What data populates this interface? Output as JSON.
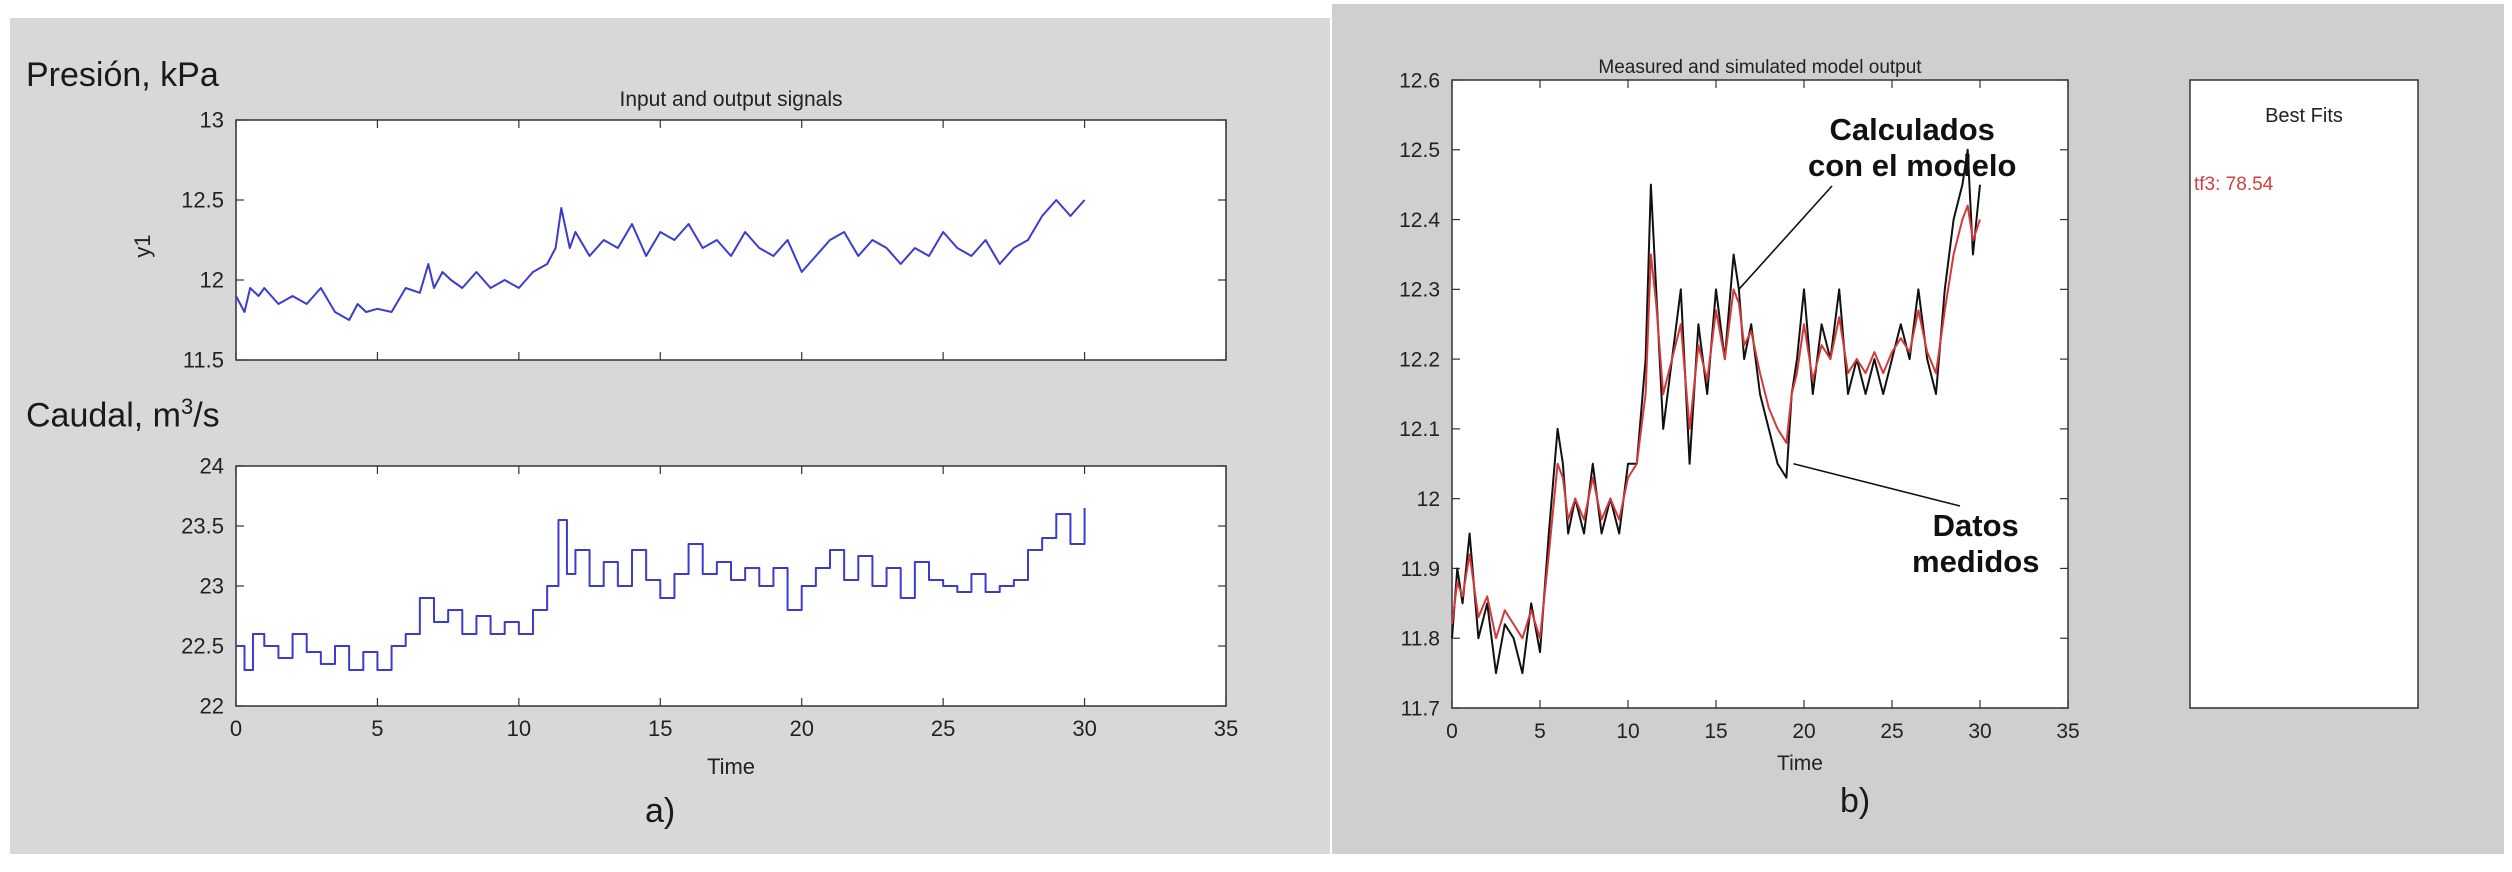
{
  "panel_a": {
    "title": "Input and output signals",
    "ylabel_top": "Presión, kPa",
    "ylabel_bottom_prefix": "Caudal, m",
    "ylabel_bottom_sup": "3",
    "ylabel_bottom_suffix": "/s",
    "caption": "a)",
    "xlabel": "Time"
  },
  "panel_b": {
    "title": "Measured and simulated model output",
    "xlabel": "Time",
    "caption": "b)",
    "annotation_model_1": "Calculados",
    "annotation_model_2": "con el modelo",
    "annotation_data_1": "Datos",
    "annotation_data_2": "medidos",
    "best_fits_title": "Best Fits",
    "best_fits_entry": "tf3: 78.54"
  },
  "colors": {
    "signal": "#3c3ccc",
    "measured": "#111111",
    "model": "#d23a3a",
    "fit_entry": "#d04040"
  },
  "chart_data": [
    {
      "type": "line",
      "title": "Input and output signals",
      "ylabel": "y1",
      "xlabel": "",
      "xlim": [
        0,
        35
      ],
      "ylim": [
        11.5,
        13
      ],
      "xticks": [
        0,
        5,
        10,
        15,
        20,
        25,
        30,
        35
      ],
      "yticks": [
        11.5,
        12,
        12.5,
        13
      ],
      "series": [
        {
          "x": [
            0,
            0.3,
            0.5,
            0.8,
            1,
            1.5,
            2,
            2.5,
            3,
            3.5,
            4,
            4.3,
            4.6,
            5,
            5.5,
            6,
            6.5,
            6.8,
            7,
            7.3,
            7.6,
            8,
            8.5,
            9,
            9.5,
            10,
            10.5,
            11,
            11.3,
            11.5,
            11.8,
            12,
            12.5,
            13,
            13.5,
            14,
            14.5,
            15,
            15.5,
            16,
            16.5,
            17,
            17.5,
            18,
            18.5,
            19,
            19.5,
            20,
            20.5,
            21,
            21.5,
            22,
            22.5,
            23,
            23.5,
            24,
            24.5,
            25,
            25.5,
            26,
            26.5,
            27,
            27.5,
            28,
            28.5,
            29,
            29.5,
            30
          ],
          "y": [
            11.9,
            11.8,
            11.95,
            11.9,
            11.95,
            11.85,
            11.9,
            11.85,
            11.95,
            11.8,
            11.75,
            11.85,
            11.8,
            11.82,
            11.8,
            11.95,
            11.92,
            12.1,
            11.95,
            12.05,
            12.0,
            11.95,
            12.05,
            11.95,
            12.0,
            11.95,
            12.05,
            12.1,
            12.2,
            12.45,
            12.2,
            12.3,
            12.15,
            12.25,
            12.2,
            12.35,
            12.15,
            12.3,
            12.25,
            12.35,
            12.2,
            12.25,
            12.15,
            12.3,
            12.2,
            12.15,
            12.25,
            12.05,
            12.15,
            12.25,
            12.3,
            12.15,
            12.25,
            12.2,
            12.1,
            12.2,
            12.15,
            12.3,
            12.2,
            12.15,
            12.25,
            12.1,
            12.2,
            12.25,
            12.4,
            12.5,
            12.4,
            12.5
          ]
        }
      ]
    },
    {
      "type": "line",
      "title": "",
      "xlabel": "Time",
      "xlim": [
        0,
        35
      ],
      "ylim": [
        22,
        24
      ],
      "xticks": [
        0,
        5,
        10,
        15,
        20,
        25,
        30,
        35
      ],
      "yticks": [
        22,
        22.5,
        23,
        23.5,
        24
      ],
      "step": true,
      "series": [
        {
          "x": [
            0,
            0.3,
            0.6,
            1,
            1.5,
            2,
            2.5,
            3,
            3.5,
            4,
            4.5,
            5,
            5.5,
            6,
            6.5,
            7,
            7.5,
            8,
            8.5,
            9,
            9.5,
            10,
            10.5,
            11,
            11.4,
            11.7,
            12,
            12.5,
            13,
            13.5,
            14,
            14.5,
            15,
            15.5,
            16,
            16.5,
            17,
            17.5,
            18,
            18.5,
            19,
            19.5,
            20,
            20.5,
            21,
            21.5,
            22,
            22.5,
            23,
            23.5,
            24,
            24.5,
            25,
            25.5,
            26,
            26.5,
            27,
            27.5,
            28,
            28.5,
            29,
            29.5,
            30
          ],
          "y": [
            22.5,
            22.3,
            22.6,
            22.5,
            22.4,
            22.6,
            22.45,
            22.35,
            22.5,
            22.3,
            22.45,
            22.3,
            22.5,
            22.6,
            22.9,
            22.7,
            22.8,
            22.6,
            22.75,
            22.6,
            22.7,
            22.6,
            22.8,
            23.0,
            23.55,
            23.1,
            23.3,
            23.0,
            23.2,
            23.0,
            23.3,
            23.05,
            22.9,
            23.1,
            23.35,
            23.1,
            23.2,
            23.05,
            23.15,
            23.0,
            23.15,
            22.8,
            23.0,
            23.15,
            23.3,
            23.05,
            23.25,
            23.0,
            23.15,
            22.9,
            23.2,
            23.05,
            23.0,
            22.95,
            23.1,
            22.95,
            23.0,
            23.05,
            23.3,
            23.4,
            23.6,
            23.35,
            23.65
          ]
        }
      ]
    },
    {
      "type": "line",
      "title": "Measured and simulated model output",
      "xlabel": "Time",
      "xlim": [
        0,
        35
      ],
      "ylim": [
        11.7,
        12.6
      ],
      "xticks": [
        0,
        5,
        10,
        15,
        20,
        25,
        30,
        35
      ],
      "yticks": [
        11.7,
        11.8,
        11.9,
        12,
        12.1,
        12.2,
        12.3,
        12.4,
        12.5,
        12.6
      ],
      "series": [
        {
          "role": "measured",
          "x": [
            0,
            0.3,
            0.6,
            1,
            1.5,
            2,
            2.5,
            3,
            3.5,
            4,
            4.5,
            5,
            5.5,
            6,
            6.3,
            6.6,
            7,
            7.5,
            8,
            8.5,
            9,
            9.5,
            10,
            10.5,
            11,
            11.3,
            11.6,
            12,
            12.5,
            13,
            13.5,
            14,
            14.5,
            15,
            15.5,
            16,
            16.3,
            16.6,
            17,
            17.5,
            18,
            18.5,
            19,
            19.3,
            19.6,
            20,
            20.5,
            21,
            21.5,
            22,
            22.5,
            23,
            23.5,
            24,
            24.5,
            25,
            25.5,
            26,
            26.5,
            27,
            27.5,
            28,
            28.5,
            29,
            29.3,
            29.6,
            30
          ],
          "y": [
            11.8,
            11.9,
            11.85,
            11.95,
            11.8,
            11.85,
            11.75,
            11.82,
            11.8,
            11.75,
            11.85,
            11.78,
            11.95,
            12.1,
            12.05,
            11.95,
            12.0,
            11.95,
            12.05,
            11.95,
            12.0,
            11.95,
            12.05,
            12.05,
            12.2,
            12.45,
            12.3,
            12.1,
            12.2,
            12.3,
            12.05,
            12.25,
            12.15,
            12.3,
            12.2,
            12.35,
            12.3,
            12.2,
            12.25,
            12.15,
            12.1,
            12.05,
            12.03,
            12.15,
            12.2,
            12.3,
            12.15,
            12.25,
            12.2,
            12.3,
            12.15,
            12.2,
            12.15,
            12.2,
            12.15,
            12.2,
            12.25,
            12.2,
            12.3,
            12.2,
            12.15,
            12.3,
            12.4,
            12.45,
            12.5,
            12.35,
            12.45
          ]
        },
        {
          "role": "model",
          "x": [
            0,
            0.3,
            0.6,
            1,
            1.5,
            2,
            2.5,
            3,
            3.5,
            4,
            4.5,
            5,
            5.5,
            6,
            6.3,
            6.6,
            7,
            7.5,
            8,
            8.5,
            9,
            9.5,
            10,
            10.5,
            11,
            11.3,
            11.6,
            12,
            12.5,
            13,
            13.5,
            14,
            14.5,
            15,
            15.5,
            16,
            16.3,
            16.6,
            17,
            17.5,
            18,
            18.5,
            19,
            19.3,
            19.6,
            20,
            20.5,
            21,
            21.5,
            22,
            22.5,
            23,
            23.5,
            24,
            24.5,
            25,
            25.5,
            26,
            26.5,
            27,
            27.5,
            28,
            28.5,
            29,
            29.3,
            29.6,
            30
          ],
          "y": [
            11.82,
            11.88,
            11.86,
            11.92,
            11.83,
            11.86,
            11.8,
            11.84,
            11.82,
            11.8,
            11.84,
            11.8,
            11.92,
            12.05,
            12.03,
            11.97,
            12.0,
            11.97,
            12.03,
            11.97,
            12.0,
            11.97,
            12.03,
            12.05,
            12.15,
            12.35,
            12.28,
            12.15,
            12.2,
            12.25,
            12.1,
            12.22,
            12.17,
            12.27,
            12.2,
            12.3,
            12.28,
            12.22,
            12.24,
            12.18,
            12.13,
            12.1,
            12.08,
            12.15,
            12.18,
            12.25,
            12.17,
            12.22,
            12.2,
            12.26,
            12.18,
            12.2,
            12.18,
            12.21,
            12.18,
            12.21,
            12.23,
            12.21,
            12.27,
            12.21,
            12.18,
            12.27,
            12.35,
            12.4,
            12.42,
            12.37,
            12.4
          ]
        }
      ]
    }
  ]
}
